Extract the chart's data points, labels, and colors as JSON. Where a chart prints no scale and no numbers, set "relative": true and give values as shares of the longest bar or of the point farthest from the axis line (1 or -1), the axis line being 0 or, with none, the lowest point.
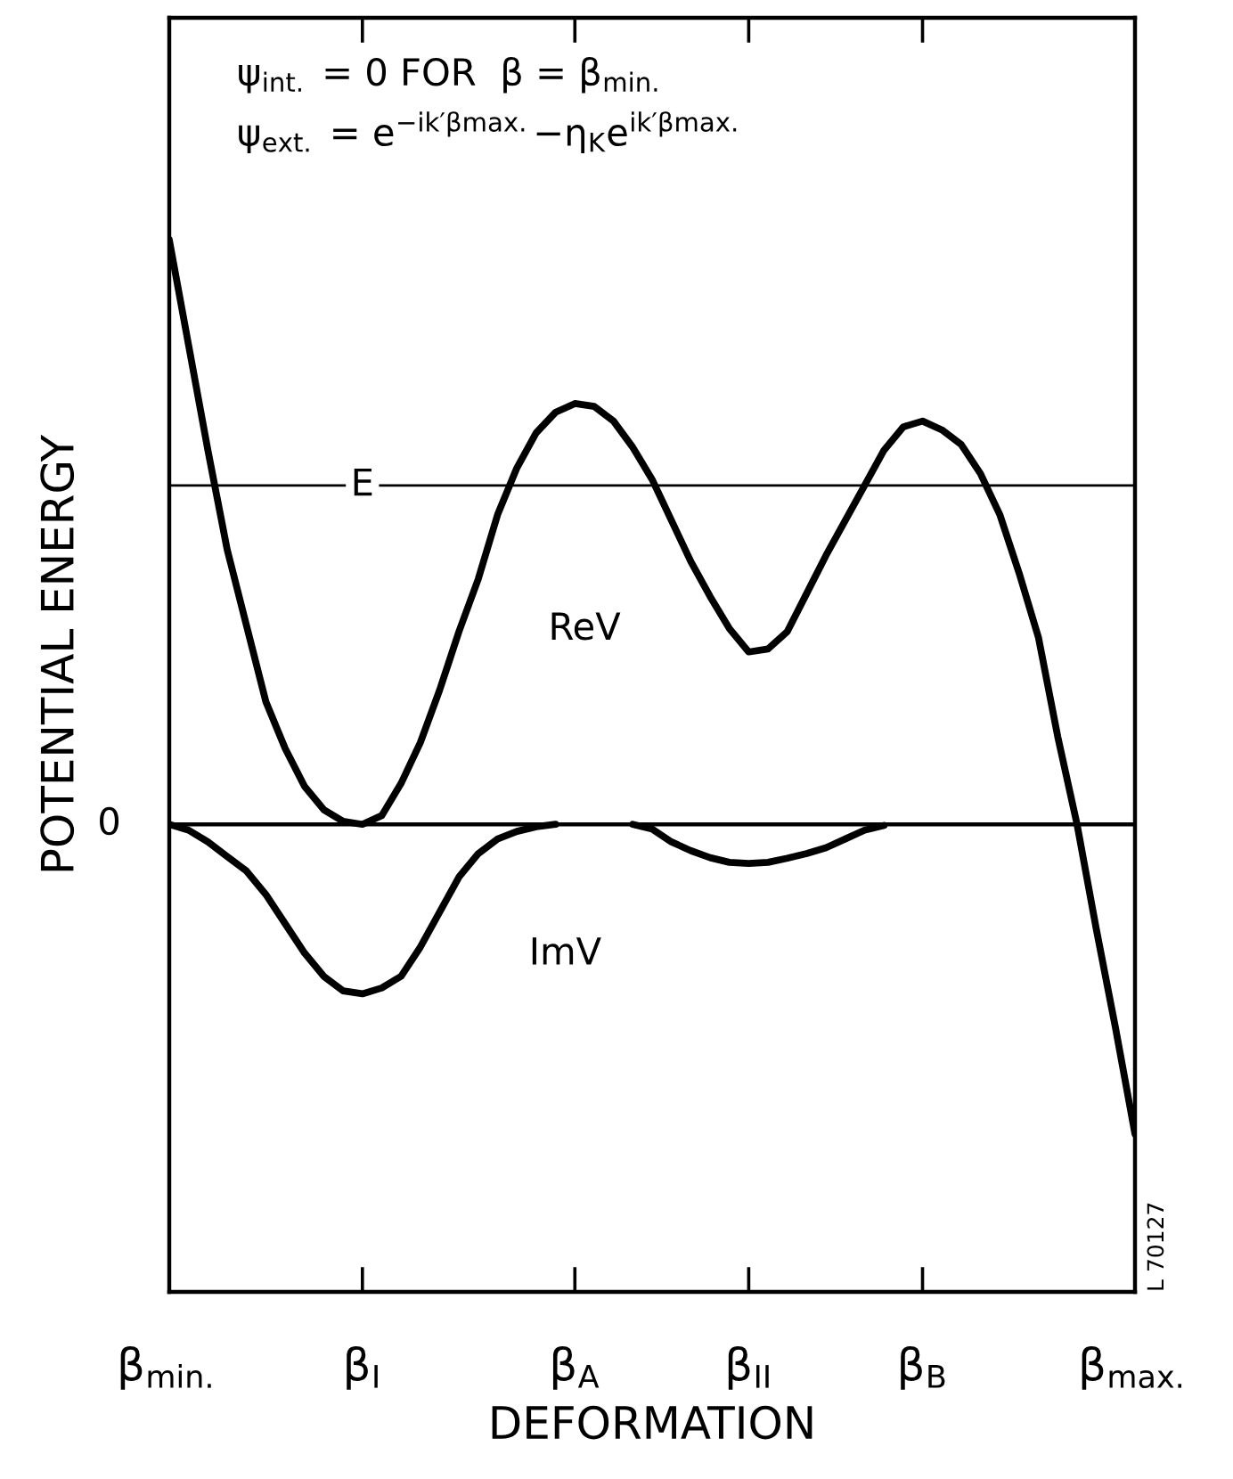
{
  "chart_data": {
    "type": "line",
    "relative": true,
    "xlabel": "DEFORMATION",
    "ylabel": "POTENTIAL ENERGY",
    "categories": [
      "β$_{min.}$",
      null,
      null,
      null,
      null,
      null,
      null,
      null,
      null,
      null,
      "β$_{I}$",
      null,
      null,
      null,
      null,
      null,
      null,
      null,
      null,
      null,
      null,
      "β$_{A}$",
      null,
      null,
      null,
      null,
      null,
      null,
      null,
      null,
      "β$_{II}$",
      null,
      null,
      null,
      null,
      null,
      null,
      null,
      null,
      "β$_{B}$",
      null,
      null,
      null,
      null,
      null,
      null,
      null,
      null,
      null,
      null,
      "β$_{max.}$"
    ],
    "series": [
      {
        "color": "#000000",
        "values": [
          1.0,
          0.82,
          0.64,
          0.47,
          0.34,
          0.21,
          0.13,
          0.065,
          0.025,
          0.005,
          0,
          0.015,
          0.07,
          0.14,
          0.23,
          0.33,
          0.42,
          0.53,
          0.61,
          0.67,
          0.705,
          0.72,
          0.715,
          0.69,
          0.645,
          0.59,
          0.52,
          0.45,
          0.39,
          0.335,
          0.295,
          0.3,
          0.33,
          0.395,
          0.46,
          0.52,
          0.58,
          0.64,
          0.68,
          0.69,
          0.675,
          0.65,
          0.6,
          0.53,
          0.43,
          0.32,
          0.15,
          0.0,
          -0.18,
          -0.35,
          -0.53
        ]
      },
      {
        "color": "#000000",
        "values": [
          0,
          -0.01,
          -0.03,
          -0.055,
          -0.08,
          -0.12,
          -0.17,
          -0.22,
          -0.26,
          -0.285,
          -0.29,
          -0.28,
          -0.26,
          -0.21,
          -0.15,
          -0.09,
          -0.05,
          -0.025,
          -0.012,
          -0.004,
          0,
          null,
          null,
          null,
          0,
          -0.008,
          -0.03,
          -0.045,
          -0.057,
          -0.065,
          -0.067,
          -0.065,
          -0.058,
          -0.05,
          -0.04,
          -0.025,
          -0.01,
          -0.002,
          null,
          null,
          null,
          null,
          null,
          null,
          null,
          null,
          null,
          null,
          null,
          null,
          null
        ]
      }
    ],
    "ref_lines": [
      {
        "axis": "y",
        "value": 0,
        "label": "0",
        "color": "#000000"
      },
      {
        "axis": "y",
        "value": 0.58,
        "label": "E",
        "color": "#000000"
      }
    ],
    "annotations": [
      "ψ$_{int.}$ = 0 FOR  β = β$_{min.}$",
      "ψ$_{ext.}$ = e$^{−ik′βmax.}$−η$_{K}$e$^{ik′βmax.}$",
      "L 70127",
      "ReV",
      "ImV"
    ],
    "grid": false,
    "marker": "none",
    "line_style": "solid"
  }
}
